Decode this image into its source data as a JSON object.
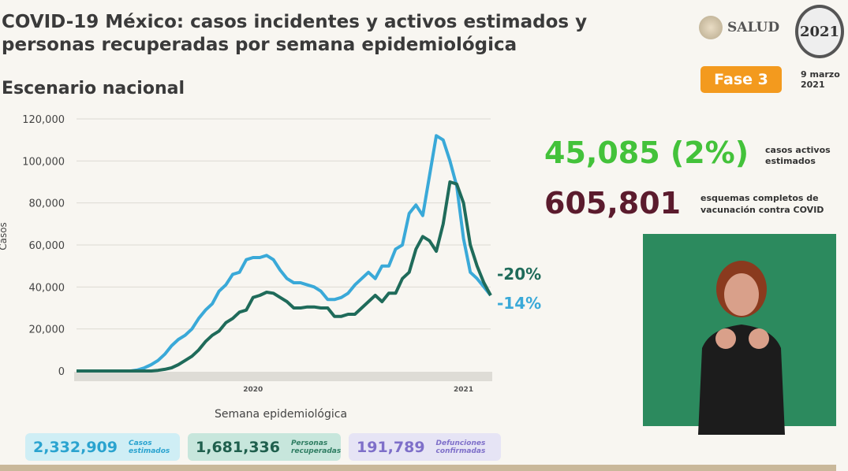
{
  "header": {
    "title_line1": "COVID-19 México: casos incidentes y activos estimados y",
    "title_line2": "personas recuperadas por semana epidemiológica",
    "subtitle": "Escenario nacional",
    "logo_salud": "SALUD",
    "logo_2021": "2021",
    "phase_badge": "Fase 3",
    "date_line1": "9 marzo",
    "date_line2": "2021"
  },
  "stats": {
    "active_value": "45,085 (2%)",
    "active_label_line1": "casos activos",
    "active_label_line2": "estimados",
    "vaccine_value": "605,801",
    "vaccine_label_line1": "esquemas completos de",
    "vaccine_label_line2": "vacunación contra COVID"
  },
  "summary_boxes": [
    {
      "value": "2,332,909",
      "label_line1": "Casos",
      "label_line2": "estimados"
    },
    {
      "value": "1,681,336",
      "label_line1": "Personas",
      "label_line2": "recuperadas"
    },
    {
      "value": "191,789",
      "label_line1": "Defunciones",
      "label_line2": "confirmadas"
    }
  ],
  "colors": {
    "estimated_cases": "#3aa9d8",
    "recovered": "#1f6b5a",
    "active": "#43c23a",
    "vaccine": "#5b1b2d",
    "phase": "#f39a1e"
  },
  "chart_data": {
    "type": "line",
    "xlabel": "Semana epidemiológica",
    "ylabel": "Casos",
    "ylim": [
      0,
      120000
    ],
    "yticks": [
      0,
      20000,
      40000,
      60000,
      80000,
      100000,
      120000
    ],
    "ytick_labels": [
      "0",
      "20,000",
      "40,000",
      "60,000",
      "80,000",
      "100,000",
      "120,000"
    ],
    "year_labels": [
      {
        "label": "2020",
        "week": 27
      },
      {
        "label": "2021",
        "week": 58
      }
    ],
    "grid": true,
    "x_weeks": [
      1,
      2,
      3,
      4,
      5,
      6,
      7,
      8,
      9,
      10,
      11,
      12,
      13,
      14,
      15,
      16,
      17,
      18,
      19,
      20,
      21,
      22,
      23,
      24,
      25,
      26,
      27,
      28,
      29,
      30,
      31,
      32,
      33,
      34,
      35,
      36,
      37,
      38,
      39,
      40,
      41,
      42,
      43,
      44,
      45,
      46,
      47,
      48,
      49,
      50,
      51,
      52,
      53,
      54,
      55,
      56,
      57,
      58,
      59,
      60,
      61,
      62
    ],
    "series": [
      {
        "color": "#3aa9d8",
        "end_label": "-14%",
        "values": [
          0,
          0,
          0,
          0,
          0,
          0,
          0,
          0,
          0,
          500,
          1500,
          3000,
          5000,
          8000,
          12000,
          15000,
          17000,
          20000,
          25000,
          29000,
          32000,
          38000,
          41000,
          46000,
          47000,
          53000,
          54000,
          54000,
          55000,
          53000,
          48000,
          44000,
          42000,
          42000,
          41000,
          40000,
          38000,
          34000,
          34000,
          35000,
          37000,
          41000,
          44000,
          47000,
          44000,
          50000,
          50000,
          58000,
          60000,
          75000,
          79000,
          74000,
          93000,
          112000,
          110000,
          100000,
          88000,
          63000,
          47000,
          44000,
          40000,
          36000
        ]
      },
      {
        "color": "#1f6b5a",
        "end_label": "-20%",
        "values": [
          0,
          0,
          0,
          0,
          0,
          0,
          0,
          0,
          0,
          0,
          0,
          0,
          300,
          800,
          1500,
          3000,
          5000,
          7000,
          10000,
          14000,
          17000,
          19000,
          23000,
          25000,
          28000,
          29000,
          35000,
          36000,
          37500,
          37000,
          35000,
          33000,
          30000,
          30000,
          30500,
          30500,
          30000,
          30000,
          26000,
          26000,
          27000,
          27000,
          30000,
          33000,
          36000,
          33000,
          37000,
          37000,
          44000,
          47000,
          58000,
          64000,
          62000,
          57000,
          70000,
          90000,
          89000,
          80000,
          60000,
          50000,
          42000,
          36000
        ]
      }
    ]
  }
}
